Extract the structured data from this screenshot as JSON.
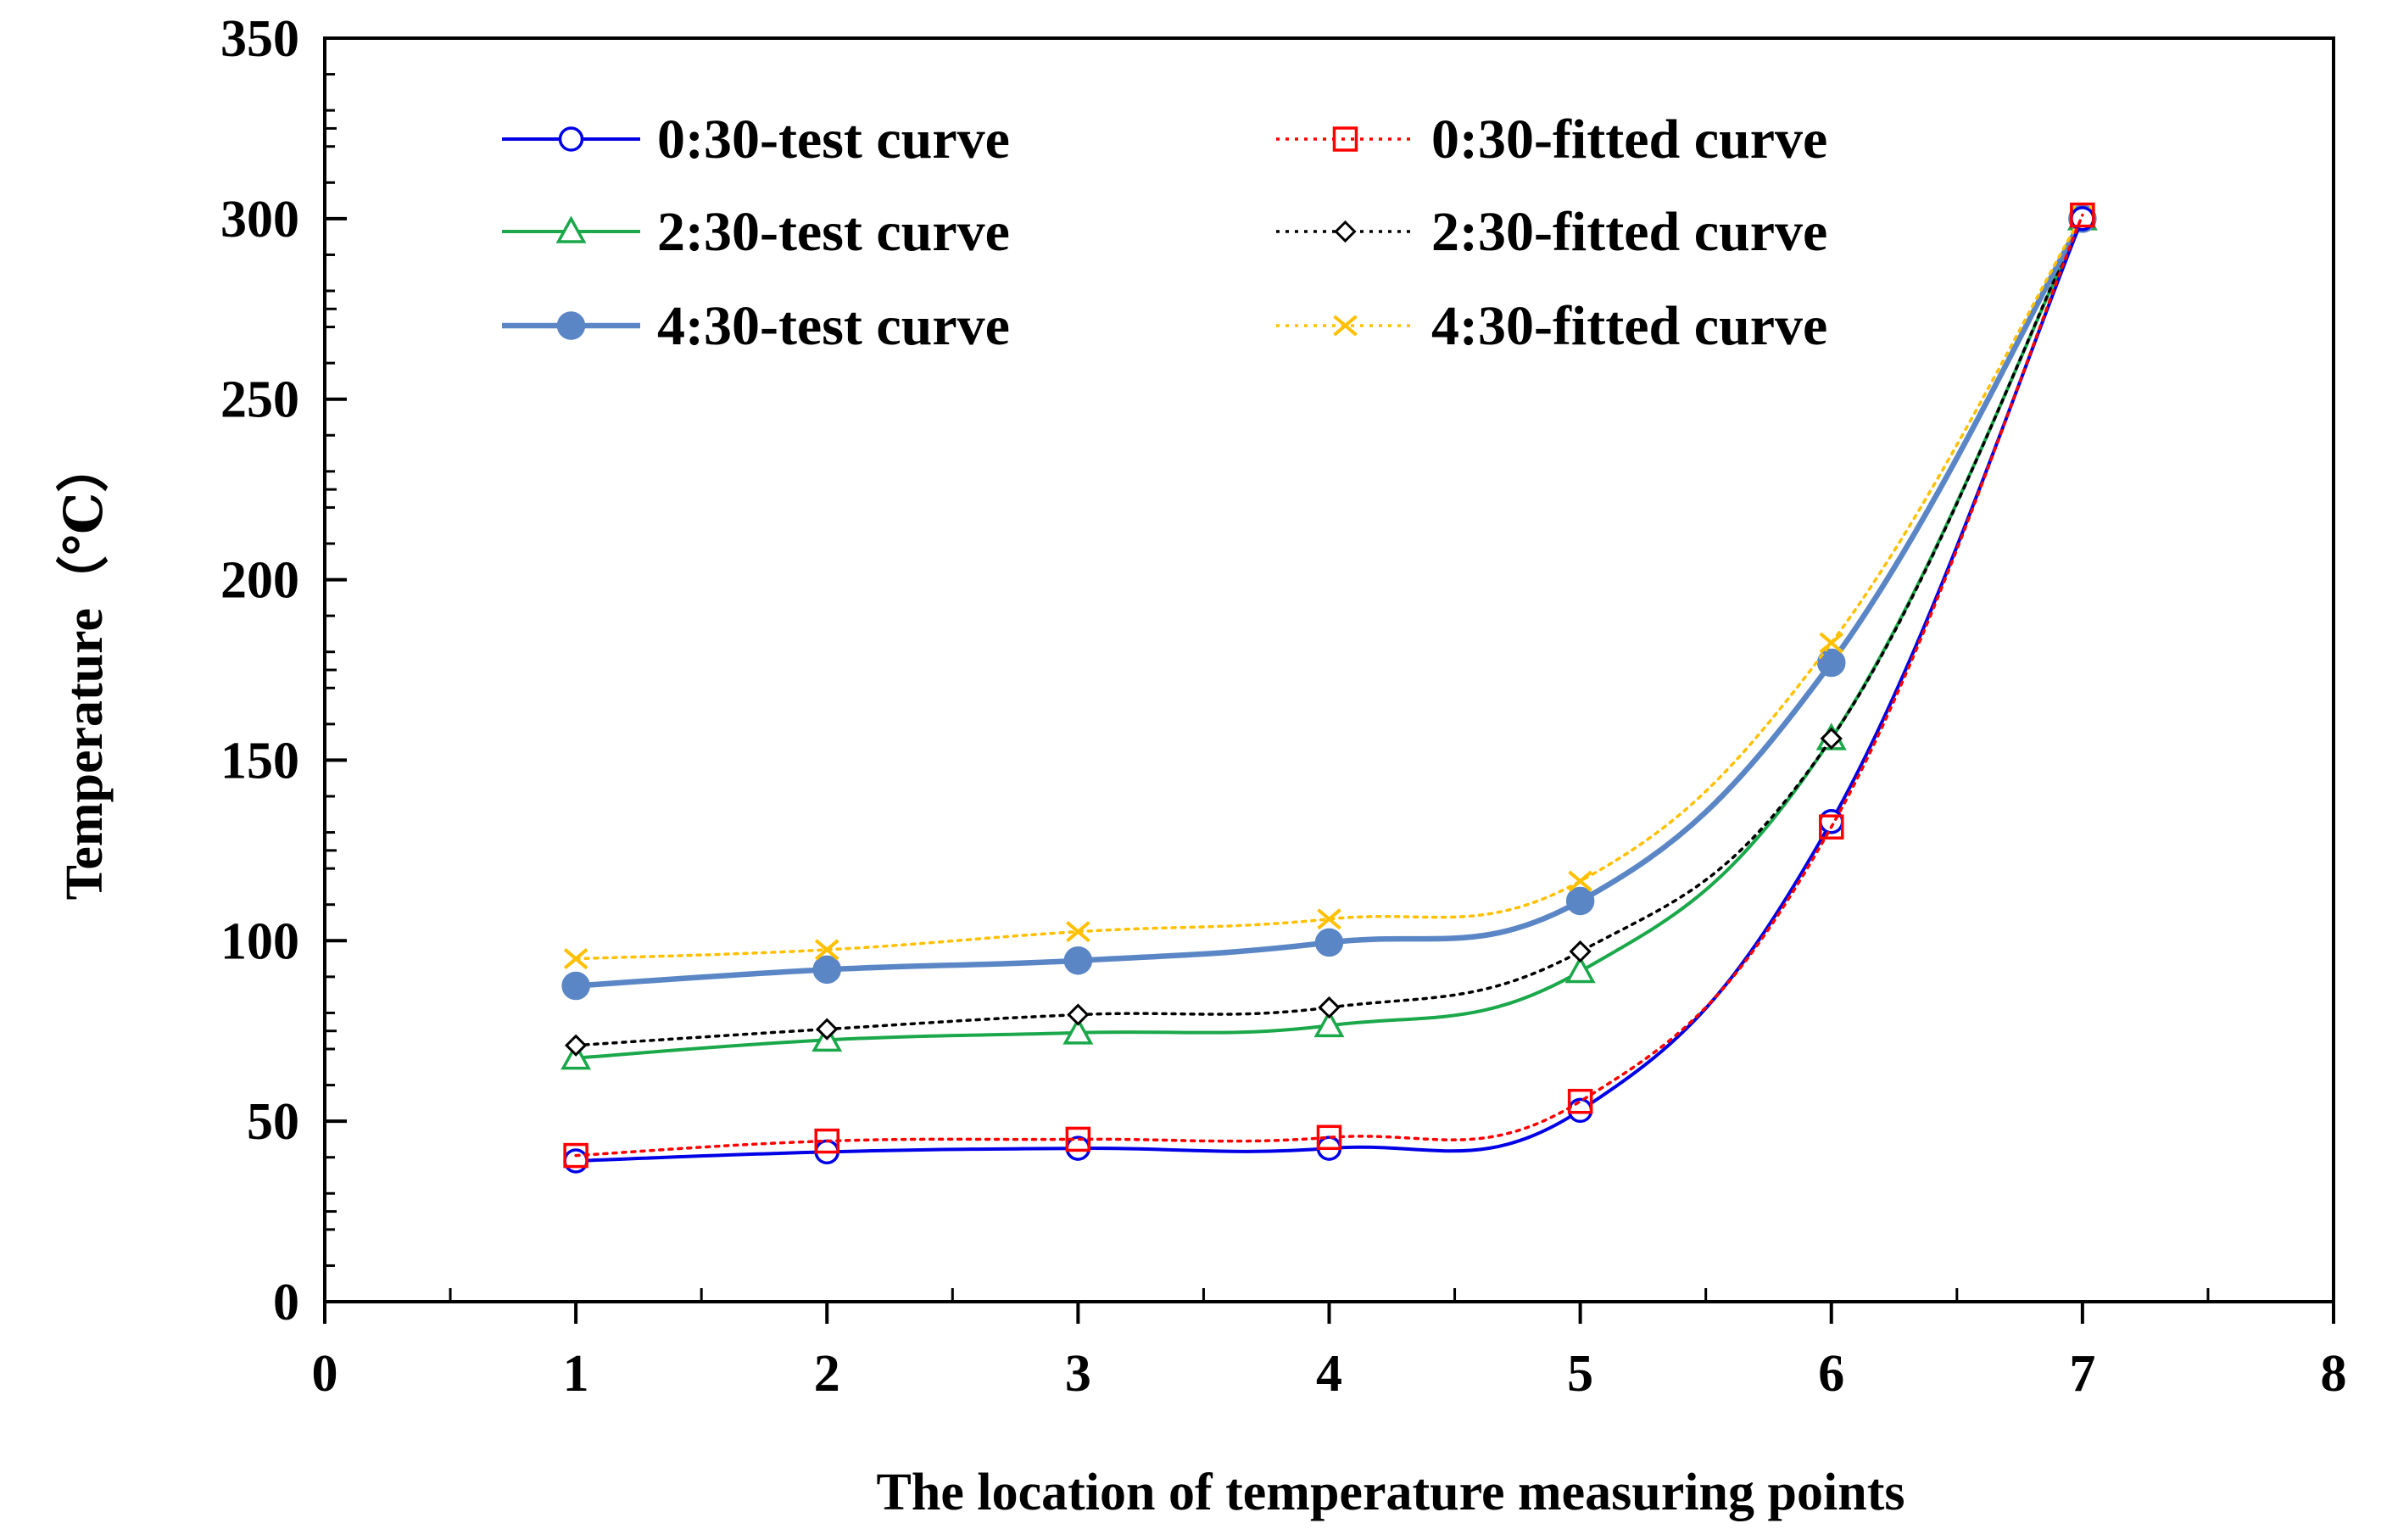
{
  "chart_data": {
    "type": "line",
    "title": "",
    "xlabel": "The location of temperature measuring points",
    "ylabel": "Temperature（℃）",
    "xlim": [
      0,
      8
    ],
    "ylim": [
      0,
      350
    ],
    "x_ticks": [
      "0",
      "1",
      "2",
      "3",
      "4",
      "5",
      "6",
      "7",
      "8"
    ],
    "y_ticks": [
      "0",
      "50",
      "100",
      "150",
      "200",
      "250",
      "300",
      "350"
    ],
    "grid": false,
    "legend_position": "top-left",
    "x": [
      1,
      2,
      3,
      4,
      5,
      6,
      7
    ],
    "series": [
      {
        "name": "0:30-test curve",
        "values": [
          39,
          41.5,
          42.5,
          42.5,
          53,
          133,
          300
        ],
        "color": "#0000e6",
        "marker": "circle-open",
        "line": "solid"
      },
      {
        "name": "0:30-fitted curve",
        "values": [
          40.5,
          44.5,
          45,
          45.5,
          55.5,
          131.5,
          301
        ],
        "color": "#ff0000",
        "marker": "square-open",
        "line": "dotted"
      },
      {
        "name": "2:30-test curve",
        "values": [
          67.5,
          72.5,
          74.5,
          76.5,
          91.5,
          156,
          300
        ],
        "color": "#1aa84a",
        "marker": "triangle-open",
        "line": "solid"
      },
      {
        "name": "2:30-fitted curve",
        "values": [
          71,
          75.5,
          79.5,
          81.5,
          97,
          156,
          300.5
        ],
        "color": "#000000",
        "marker": "diamond-open",
        "line": "dotted"
      },
      {
        "name": "4:30-test curve",
        "values": [
          87.5,
          92,
          94.5,
          99.5,
          111,
          177,
          300
        ],
        "color": "#5b86c6",
        "marker": "circle-filled",
        "line": "solid"
      },
      {
        "name": "4:30-fitted curve",
        "values": [
          95,
          97.5,
          102.5,
          106,
          116.5,
          182.5,
          301
        ],
        "color": "#ffc000",
        "marker": "x",
        "line": "dotted"
      }
    ]
  }
}
